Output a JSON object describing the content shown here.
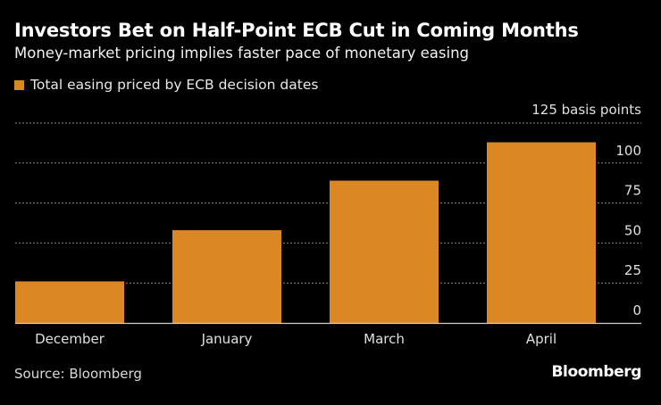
{
  "title": "Investors Bet on Half-Point ECB Cut in Coming Months",
  "subtitle": "Money-market pricing implies faster pace of monetary easing",
  "source": "Source: Bloomberg",
  "logo": "Bloomberg",
  "colors": {
    "bar": "#DB8824",
    "grid": "#8a8a8a",
    "background": "#000000"
  },
  "chart_data": {
    "type": "bar",
    "title": "Investors Bet on Half-Point ECB Cut in Coming Months",
    "subtitle": "Money-market pricing implies faster pace of monetary easing",
    "xlabel": "",
    "ylabel": "basis points",
    "categories": [
      "December",
      "January",
      "March",
      "April"
    ],
    "series": [
      {
        "name": "Total easing priced by ECB decision dates",
        "values": [
          26,
          58,
          89,
          113
        ]
      }
    ],
    "ylim": [
      0,
      125
    ],
    "yticks": [
      0,
      25,
      50,
      75,
      100,
      125
    ],
    "ytick_labels": [
      "0",
      "25",
      "50",
      "75",
      "100",
      "125 basis points"
    ],
    "grid": true,
    "legend_position": "top-left",
    "y_axis_side": "right"
  }
}
